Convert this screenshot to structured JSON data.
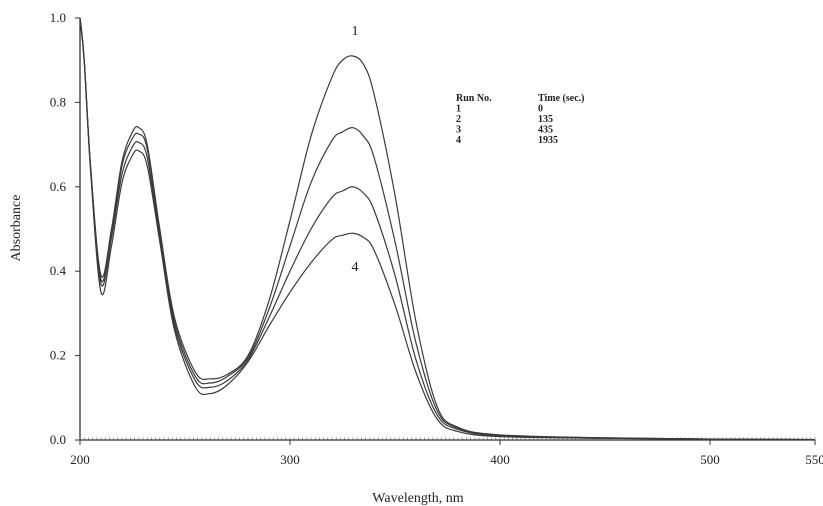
{
  "chart_data": {
    "type": "line",
    "title": "",
    "xlabel": "Wavelength, nm",
    "ylabel": "Absorbance",
    "xlim": [
      200,
      550
    ],
    "ylim": [
      0,
      1.0
    ],
    "x_ticks": [
      200,
      300,
      400,
      500,
      550
    ],
    "y_ticks": [
      0.0,
      0.2,
      0.4,
      0.6,
      0.8,
      1.0
    ],
    "x_tick_labels": [
      "200",
      "300",
      "400",
      "500",
      "550"
    ],
    "y_tick_labels": [
      "0.0",
      "0.2",
      "0.4",
      "0.6",
      "0.8",
      "1.0"
    ],
    "grid": false,
    "legend": {
      "position": "top-right",
      "headers": [
        "Run No.",
        "Time (sec.)"
      ],
      "rows": [
        [
          "1",
          "0"
        ],
        [
          "2",
          "135"
        ],
        [
          "3",
          "435"
        ],
        [
          "4",
          "1935"
        ]
      ]
    },
    "annotations": [
      {
        "text": "1",
        "x": 330,
        "y": 0.96
      },
      {
        "text": "4",
        "x": 330,
        "y": 0.4
      }
    ],
    "x": [
      200,
      202,
      205,
      210,
      215,
      220,
      225,
      228,
      232,
      238,
      245,
      255,
      262,
      270,
      280,
      290,
      300,
      310,
      320,
      325,
      330,
      335,
      340,
      350,
      360,
      370,
      380,
      400,
      450,
      500,
      550
    ],
    "series": [
      {
        "values": [
          1.0,
          0.9,
          0.65,
          0.39,
          0.5,
          0.66,
          0.73,
          0.74,
          0.7,
          0.5,
          0.29,
          0.16,
          0.145,
          0.155,
          0.2,
          0.33,
          0.52,
          0.72,
          0.86,
          0.9,
          0.91,
          0.89,
          0.82,
          0.58,
          0.28,
          0.08,
          0.03,
          0.012,
          0.005,
          0.002,
          0.001
        ]
      },
      {
        "values": [
          1.0,
          0.9,
          0.65,
          0.38,
          0.49,
          0.65,
          0.715,
          0.725,
          0.69,
          0.49,
          0.28,
          0.15,
          0.135,
          0.15,
          0.195,
          0.31,
          0.46,
          0.61,
          0.71,
          0.73,
          0.74,
          0.72,
          0.67,
          0.47,
          0.23,
          0.07,
          0.028,
          0.011,
          0.005,
          0.002,
          0.001
        ]
      },
      {
        "values": [
          1.0,
          0.9,
          0.65,
          0.37,
          0.48,
          0.63,
          0.695,
          0.705,
          0.67,
          0.48,
          0.27,
          0.14,
          0.125,
          0.14,
          0.19,
          0.29,
          0.4,
          0.5,
          0.575,
          0.59,
          0.6,
          0.585,
          0.545,
          0.39,
          0.19,
          0.06,
          0.025,
          0.01,
          0.004,
          0.002,
          0.001
        ]
      },
      {
        "values": [
          1.0,
          0.9,
          0.64,
          0.35,
          0.46,
          0.61,
          0.675,
          0.685,
          0.65,
          0.47,
          0.26,
          0.125,
          0.11,
          0.13,
          0.185,
          0.27,
          0.35,
          0.42,
          0.475,
          0.485,
          0.49,
          0.48,
          0.45,
          0.32,
          0.16,
          0.05,
          0.02,
          0.008,
          0.004,
          0.002,
          0.001
        ]
      }
    ]
  }
}
